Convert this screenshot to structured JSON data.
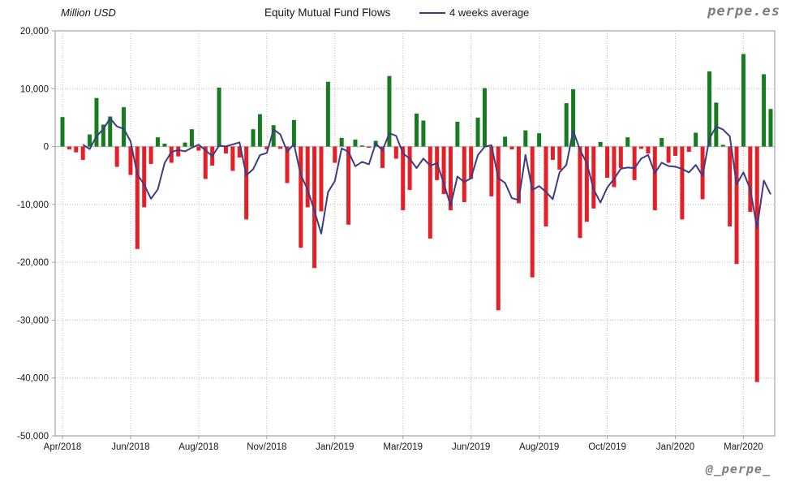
{
  "header": {
    "y_axis_title": "Million USD",
    "title": "Equity Mutual Fund Flows",
    "legend_label": "4 weeks average",
    "watermark_top": "perpe.es",
    "watermark_bottom": "@_perpe_"
  },
  "colors": {
    "positive_bar": "#177c1e",
    "negative_bar": "#e41f25",
    "average_line": "#3d3d85",
    "grid": "#b9b9c0",
    "zero_line": "#c4c4ca",
    "plot_border": "#a3a3ab",
    "text": "#16161f",
    "watermark": "#7d7d7d"
  },
  "chart_data": {
    "type": "bar",
    "title": "Equity Mutual Fund Flows",
    "unit": "Million USD",
    "frequency": "weekly",
    "ylim": [
      -50000,
      20000
    ],
    "y_ticks": [
      20000,
      10000,
      0,
      -10000,
      -20000,
      -30000,
      -40000,
      -50000
    ],
    "x_tick_labels": [
      "Apr/2018",
      "Jun/2018",
      "Aug/2018",
      "Nov/2018",
      "Jan/2019",
      "Mar/2019",
      "Jun/2019",
      "Aug/2019",
      "Oct/2019",
      "Jan/2020",
      "Mar/2020"
    ],
    "x_tick_indices": [
      0,
      10,
      20,
      30,
      40,
      50,
      60,
      70,
      80,
      90,
      100
    ],
    "grid": true,
    "legend_position": "top",
    "series": [
      {
        "name": "Equity Mutual Fund Flows",
        "style": "bars",
        "values": [
          5100,
          -500,
          -1000,
          -2300,
          2100,
          8400,
          3800,
          5200,
          -3500,
          6800,
          -4900,
          -17700,
          -10500,
          -3000,
          1600,
          500,
          -2800,
          -1700,
          700,
          3000,
          -700,
          -5600,
          -3300,
          10200,
          -1200,
          -4200,
          -1900,
          -12600,
          3000,
          5600,
          -500,
          3700,
          -400,
          -6300,
          4600,
          -17500,
          -10500,
          -21000,
          -11200,
          11200,
          -2800,
          1500,
          -13500,
          1200,
          200,
          -200,
          1000,
          -3700,
          12200,
          -2100,
          -11000,
          -7500,
          5700,
          4500,
          -15900,
          -5800,
          -8200,
          -11000,
          4300,
          -9600,
          -5600,
          5000,
          10100,
          -8600,
          -28300,
          1700,
          -500,
          -9800,
          2800,
          -22600,
          2300,
          -13800,
          -2300,
          -4000,
          7500,
          9900,
          -15800,
          -13000,
          -10700,
          800,
          -5400,
          -7000,
          -3700,
          1600,
          -5800,
          -400,
          -1200,
          -11000,
          1500,
          -2800,
          -1600,
          -12600,
          -900,
          2400,
          -9100,
          13000,
          7600,
          300,
          -13800,
          -20300,
          16000,
          -11300,
          -40700,
          12500,
          6500
        ]
      },
      {
        "name": "4 weeks average",
        "style": "line",
        "derived": "trailing_mean_window_4_of_series_0"
      }
    ]
  }
}
